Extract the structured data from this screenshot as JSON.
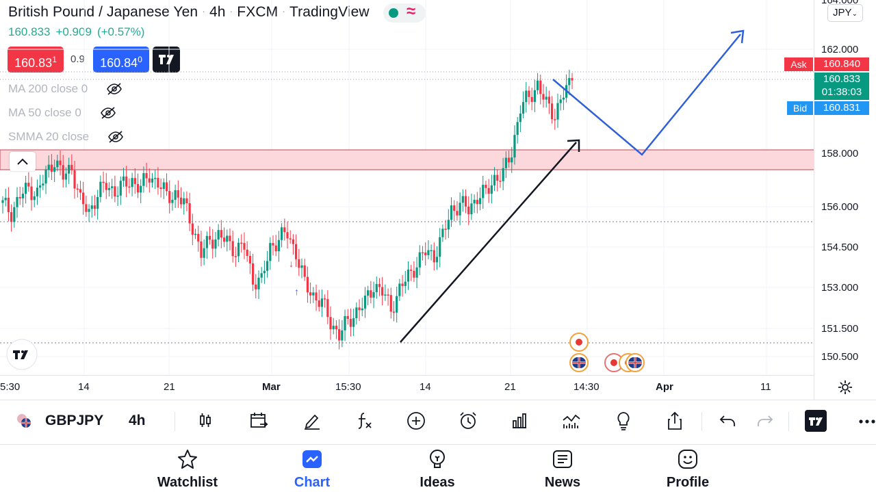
{
  "header": {
    "symbol_name": "British Pound / Japanese Yen",
    "interval": "4h",
    "exchange": "FXCM",
    "publisher": "TradingView",
    "last_price": "160.833",
    "change": "+0.909",
    "change_pct": "(+0.57%)"
  },
  "trade": {
    "sell_main": "160.83",
    "sell_sup": "1",
    "spread": "0.9",
    "buy_main": "160.84",
    "buy_sup": "0"
  },
  "indicators": [
    {
      "label": "MA 200 close 0"
    },
    {
      "label": "MA 50 close 0"
    },
    {
      "label": "SMMA 20 close"
    }
  ],
  "price_axis": {
    "currency": "JPY",
    "top_partial": "164.000",
    "labels": [
      "162.000",
      "158.000",
      "156.000",
      "154.500",
      "153.000",
      "151.500",
      "150.500"
    ],
    "ask_label": "Ask",
    "ask_price": "160.840",
    "current_price": "160.833",
    "countdown": "01:38:03",
    "bid_label": "Bid",
    "bid_price": "160.831"
  },
  "time_axis": {
    "labels": [
      "5:30",
      "14",
      "21",
      "Mar",
      "15:30",
      "14",
      "21",
      "14:30",
      "Apr",
      "11"
    ]
  },
  "toolbar": {
    "symbol": "GBPJPY",
    "interval": "4h",
    "icons": [
      "candles-icon",
      "calendar-compare-icon",
      "draw-pen-icon",
      "function-icon",
      "plus-circle-icon",
      "alarm-icon",
      "bar-chart-icon",
      "indicators-icon",
      "lightbulb-icon",
      "share-icon",
      "undo-icon",
      "redo-icon",
      "tradingview-logo-icon",
      "more-icon"
    ]
  },
  "nav": {
    "items": [
      {
        "label": "Watchlist",
        "icon": "star-icon"
      },
      {
        "label": "Chart",
        "icon": "chart-icon"
      },
      {
        "label": "Ideas",
        "icon": "lightbulb-icon"
      },
      {
        "label": "News",
        "icon": "news-icon"
      },
      {
        "label": "Profile",
        "icon": "profile-icon"
      }
    ]
  },
  "colors": {
    "up": "#089981",
    "down": "#f23645",
    "accent": "#2962ff",
    "zone": "#fcd7db",
    "projection": "#2f5fd8"
  },
  "chart_data": {
    "type": "candlestick",
    "symbol": "GBPJPY",
    "interval": "4h",
    "ylim": [
      150.0,
      164.0
    ],
    "resistance_zone": [
      157.5,
      158.0
    ],
    "levels": [
      155.3,
      151.1,
      160.84,
      160.83
    ],
    "close_path": [
      156.2,
      155.9,
      156.5,
      156.8,
      156.6,
      157.3,
      157.9,
      157.2,
      157.6,
      156.3,
      155.9,
      156.6,
      156.9,
      156.7,
      156.9,
      157.1,
      156.8,
      157.3,
      157.0,
      156.5,
      156.6,
      156.2,
      155.4,
      154.3,
      154.9,
      155.0,
      154.8,
      154.5,
      154.6,
      153.4,
      153.3,
      154.6,
      154.9,
      155.1,
      154.4,
      153.2,
      152.8,
      152.5,
      151.8,
      151.3,
      151.8,
      152.2,
      152.5,
      153.2,
      152.9,
      152.3,
      153.0,
      153.5,
      154.0,
      154.4,
      154.3,
      155.0,
      156.0,
      156.2,
      156.0,
      156.5,
      156.6,
      157.2,
      157.3,
      158.2,
      159.8,
      160.2,
      160.7,
      159.9,
      159.6,
      160.3,
      160.833
    ],
    "projection_path": [
      [
        160.8,
        160.8
      ],
      [
        157.9,
        157.9
      ],
      [
        162.5,
        162.5
      ]
    ]
  }
}
